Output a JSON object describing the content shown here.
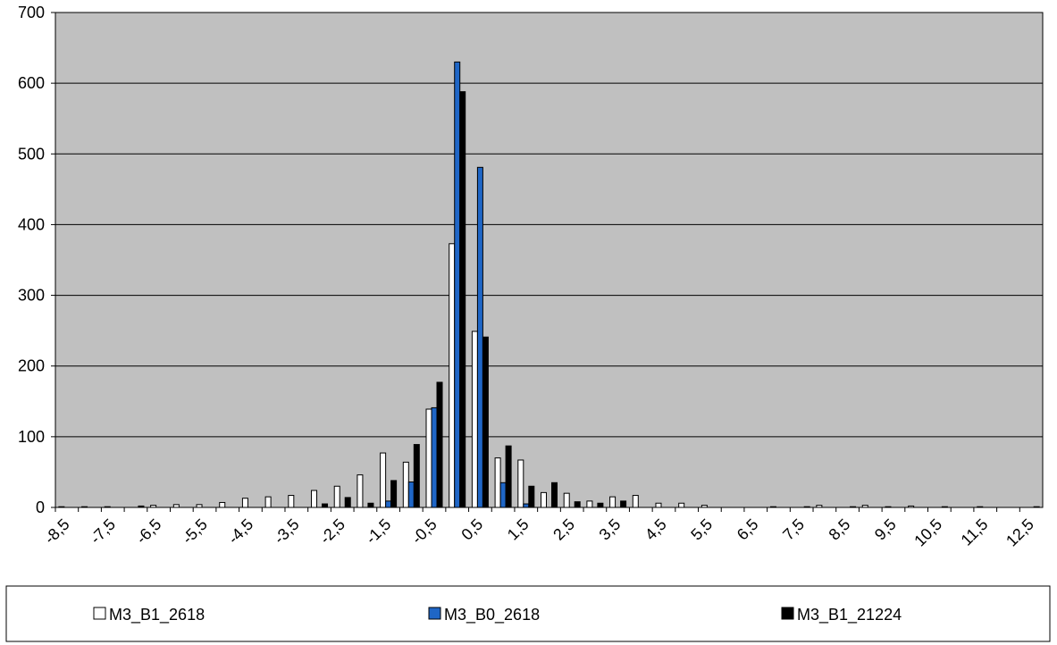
{
  "chart_data": {
    "type": "bar",
    "categories": [
      "-8,5",
      null,
      "-7,5",
      null,
      "-6,5",
      null,
      "-5,5",
      null,
      "-4,5",
      null,
      "-3,5",
      null,
      "-2,5",
      null,
      "-1,5",
      null,
      "-0,5",
      null,
      "0,5",
      null,
      "1,5",
      null,
      "2,5",
      null,
      "3,5",
      null,
      "4,5",
      null,
      "5,5",
      null,
      "6,5",
      null,
      "7,5",
      null,
      "8,5",
      null,
      "9,5",
      null,
      "10,5",
      null,
      "11,5",
      null,
      "12,5"
    ],
    "series": [
      {
        "name": "M3_B1_2618",
        "color": "#ffffff",
        "values": [
          1,
          1,
          1,
          0,
          3,
          4,
          4,
          7,
          13,
          15,
          17,
          24,
          30,
          46,
          77,
          64,
          139,
          373,
          249,
          70,
          67,
          21,
          20,
          9,
          15,
          17,
          6,
          6,
          3,
          0,
          0,
          1,
          0,
          3,
          0,
          3,
          1,
          2,
          0,
          0,
          1,
          0,
          0
        ]
      },
      {
        "name": "M3_B0_2618",
        "color": "#1f66c6",
        "values": [
          0,
          0,
          0,
          0,
          0,
          0,
          0,
          0,
          0,
          0,
          0,
          0,
          0,
          0,
          9,
          36,
          141,
          630,
          481,
          35,
          5,
          0,
          0,
          0,
          0,
          0,
          0,
          0,
          0,
          0,
          0,
          0,
          0,
          0,
          0,
          0,
          0,
          0,
          0,
          0,
          0,
          0,
          0
        ]
      },
      {
        "name": "M3_B1_21224",
        "color": "#000000",
        "values": [
          0,
          0,
          0,
          2,
          0,
          0,
          0,
          0,
          0,
          0,
          0,
          5,
          14,
          6,
          38,
          89,
          177,
          588,
          241,
          87,
          30,
          35,
          8,
          6,
          9,
          0,
          0,
          0,
          0,
          0,
          0,
          0,
          1,
          0,
          1,
          0,
          0,
          0,
          1,
          0,
          0,
          0,
          1
        ]
      }
    ],
    "ylim": [
      0,
      700
    ],
    "yticks": [
      0,
      100,
      200,
      300,
      400,
      500,
      600,
      700
    ],
    "grid": true,
    "plot_background": "#c0c0c0",
    "legend": "bottom"
  }
}
